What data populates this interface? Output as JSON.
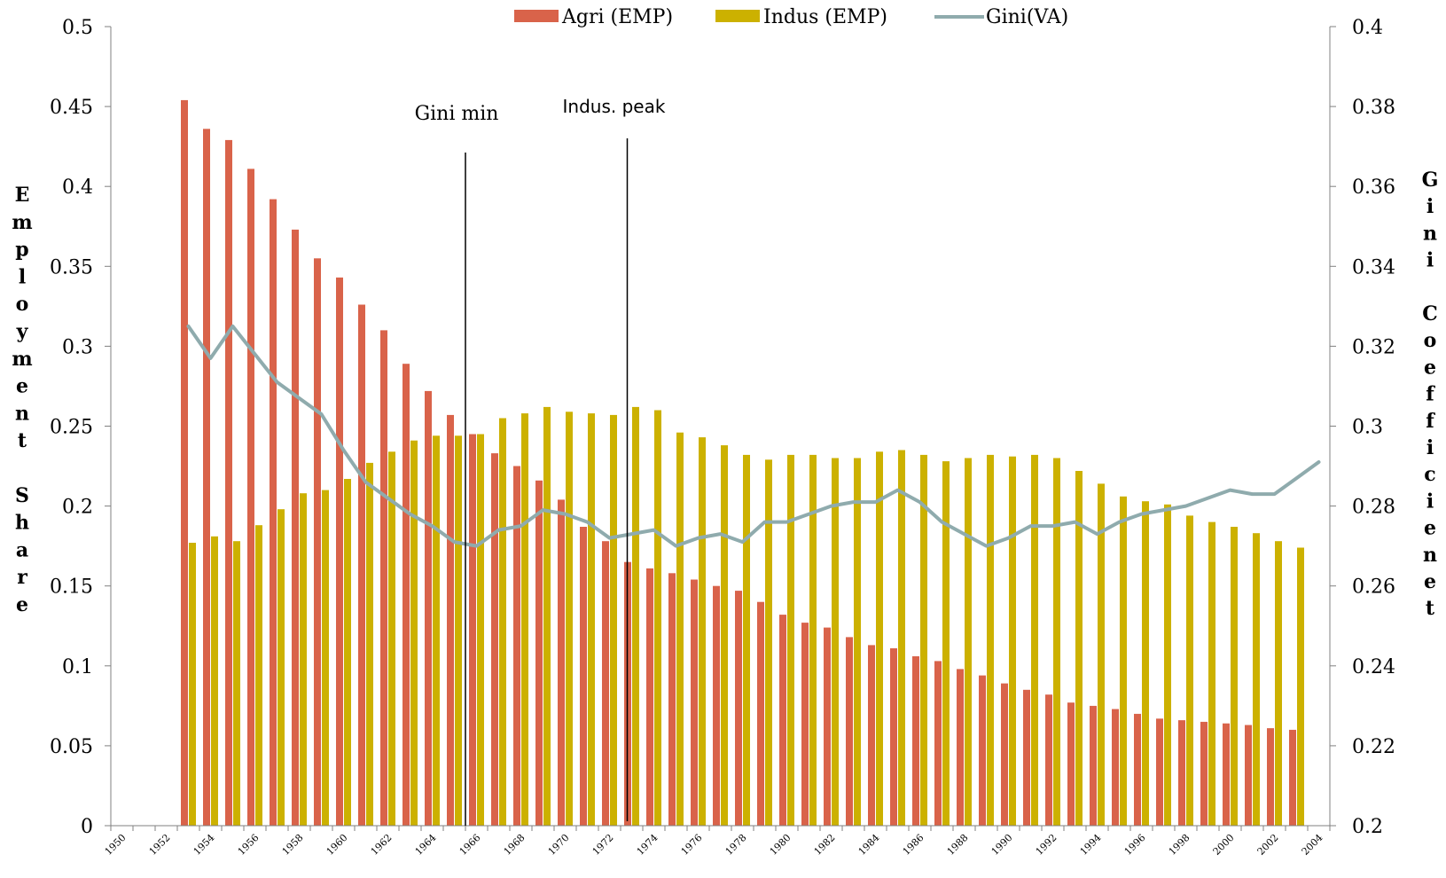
{
  "chart_data": {
    "type": "bar",
    "xlabels": [
      "1950",
      "1952",
      "1954",
      "1956",
      "1958",
      "1960",
      "1962",
      "1964",
      "1966",
      "1968",
      "1970",
      "1972",
      "1974",
      "1976",
      "1978",
      "1980",
      "1982",
      "1984",
      "1986",
      "1988",
      "1990",
      "1992",
      "1994",
      "1996",
      "1998",
      "2000",
      "2002",
      "2004"
    ],
    "years": [
      1950,
      1951,
      1952,
      1953,
      1954,
      1955,
      1956,
      1957,
      1958,
      1959,
      1960,
      1961,
      1962,
      1963,
      1964,
      1965,
      1966,
      1967,
      1968,
      1969,
      1970,
      1971,
      1972,
      1973,
      1974,
      1975,
      1976,
      1977,
      1978,
      1979,
      1980,
      1981,
      1982,
      1983,
      1984,
      1985,
      1986,
      1987,
      1988,
      1989,
      1990,
      1991,
      1992,
      1993,
      1994,
      1995,
      1996,
      1997,
      1998,
      1999,
      2000,
      2001,
      2002,
      2003,
      2004
    ],
    "series": [
      {
        "name": "Agri (EMP)",
        "axis": "left",
        "kind": "bar",
        "color": "#d9634a",
        "values": [
          null,
          null,
          null,
          0.454,
          0.436,
          0.429,
          0.411,
          0.392,
          0.373,
          0.355,
          0.343,
          0.326,
          0.31,
          0.289,
          0.272,
          0.257,
          0.245,
          0.233,
          0.225,
          0.216,
          0.204,
          0.187,
          0.178,
          0.165,
          0.161,
          0.158,
          0.154,
          0.15,
          0.147,
          0.14,
          0.132,
          0.127,
          0.124,
          0.118,
          0.113,
          0.111,
          0.106,
          0.103,
          0.098,
          0.094,
          0.089,
          0.085,
          0.082,
          0.077,
          0.075,
          0.073,
          0.07,
          0.067,
          0.066,
          0.065,
          0.064,
          0.063,
          0.061,
          0.06,
          null
        ]
      },
      {
        "name": "Indus (EMP)",
        "axis": "left",
        "kind": "bar",
        "color": "#ccb100",
        "values": [
          null,
          null,
          null,
          0.177,
          0.181,
          0.178,
          0.188,
          0.198,
          0.208,
          0.21,
          0.217,
          0.227,
          0.234,
          0.241,
          0.244,
          0.244,
          0.245,
          0.255,
          0.258,
          0.262,
          0.259,
          0.258,
          0.257,
          0.262,
          0.26,
          0.246,
          0.243,
          0.238,
          0.232,
          0.229,
          0.232,
          0.232,
          0.23,
          0.23,
          0.234,
          0.235,
          0.232,
          0.228,
          0.23,
          0.232,
          0.231,
          0.232,
          0.23,
          0.222,
          0.214,
          0.206,
          0.203,
          0.201,
          0.194,
          0.19,
          0.187,
          0.183,
          0.178,
          0.174,
          null
        ]
      },
      {
        "name": "Gini(VA)",
        "axis": "right",
        "kind": "line",
        "color": "#8fabad",
        "values": [
          null,
          null,
          null,
          0.325,
          0.317,
          0.325,
          0.318,
          0.311,
          0.307,
          0.303,
          0.294,
          0.286,
          0.282,
          0.278,
          0.275,
          0.271,
          0.27,
          0.274,
          0.275,
          0.279,
          0.278,
          0.276,
          0.272,
          0.273,
          0.274,
          0.27,
          0.272,
          0.273,
          0.271,
          0.276,
          0.276,
          0.278,
          0.28,
          0.281,
          0.281,
          0.284,
          0.281,
          0.276,
          0.273,
          0.27,
          0.272,
          0.275,
          0.275,
          0.276,
          0.273,
          0.276,
          0.278,
          0.279,
          0.28,
          0.282,
          0.284,
          0.283,
          0.283,
          0.287,
          0.291
        ]
      }
    ],
    "left_axis": {
      "label": "Employment Share",
      "ylim": [
        0,
        0.5
      ],
      "ticks": [
        "0",
        "0.05",
        "0.1",
        "0.15",
        "0.2",
        "0.25",
        "0.3",
        "0.35",
        "0.4",
        "0.45",
        "0.5"
      ]
    },
    "right_axis": {
      "label": "Gini Coefficienet",
      "ylim": [
        0.2,
        0.4
      ],
      "ticks": [
        "0.2",
        "0.22",
        "0.24",
        "0.26",
        "0.28",
        "0.3",
        "0.32",
        "0.34",
        "0.36",
        "0.38",
        "0.4"
      ]
    },
    "annotations": [
      {
        "text": "Gini min",
        "x": 1966
      },
      {
        "text": "Indus. peak",
        "x": 1973.3
      }
    ],
    "legend": "top-center",
    "grid": false
  }
}
